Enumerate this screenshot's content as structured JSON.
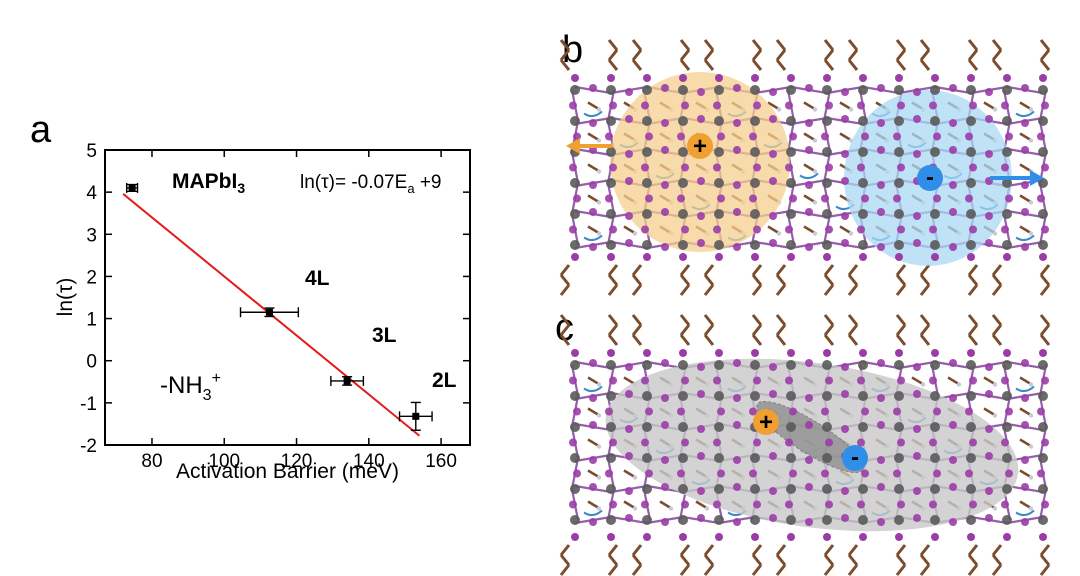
{
  "colors": {
    "fit_line": "#e41a1c",
    "hole": "#f0a030",
    "electron": "#2f8fe8",
    "hole_cloud": "#f6cf8f",
    "electron_cloud": "#a9d8f3",
    "exciton_cloud": "#c8c8c8",
    "lattice_bond": "#8a4fa0",
    "iodine_atom": "#9b3da8",
    "lead_atom": "#5a5a5a",
    "organic_bond": "#7a4e2d",
    "arrow_red": "#e04040",
    "arrow_blue": "#3a8ac8"
  },
  "panels": {
    "a": {
      "letter": "a"
    },
    "b": {
      "letter": "b",
      "hole_sign": "+",
      "electron_sign": "-",
      "left_arrow_icon": "arrow-left-icon",
      "right_arrow_icon": "arrow-right-icon"
    },
    "c": {
      "letter": "c",
      "hole_sign": "+",
      "electron_sign": "-"
    }
  },
  "chart_data": {
    "type": "scatter",
    "xlabel": "Activation Barrier (meV)",
    "ylabel": "ln(τ)",
    "xlim": [
      67,
      168
    ],
    "ylim": [
      -2,
      5
    ],
    "xticks": [
      80,
      100,
      120,
      140,
      160
    ],
    "yticks": [
      -2,
      -1,
      0,
      1,
      2,
      3,
      4,
      5
    ],
    "points": [
      {
        "x": 74.5,
        "y": 4.1,
        "xerr": 1.5,
        "yerr": 0.08,
        "label": "MAPbI3"
      },
      {
        "x": 112.5,
        "y": 1.15,
        "xerr": 8.0,
        "yerr": 0.1,
        "label": "4L"
      },
      {
        "x": 134,
        "y": -0.48,
        "xerr": 4.5,
        "yerr": 0.1,
        "label": "3L"
      },
      {
        "x": 153,
        "y": -1.32,
        "xerr": 4.5,
        "yerr": 0.33,
        "label": "2L"
      }
    ],
    "fit": {
      "x_start": 72,
      "x_end": 154,
      "slope": -0.07,
      "intercept": 9
    },
    "annotations": {
      "equation_prefix": "ln(τ)= -0.07E",
      "equation_sub": "a",
      "equation_suffix": " +9",
      "mapbi_main": "MAPbI",
      "mapbi_sub": "3",
      "label_4L": "4L",
      "label_3L": "3L",
      "label_2L": "2L",
      "nh3_prefix": "-NH",
      "nh3_sub": "3",
      "nh3_sup": "+"
    }
  }
}
